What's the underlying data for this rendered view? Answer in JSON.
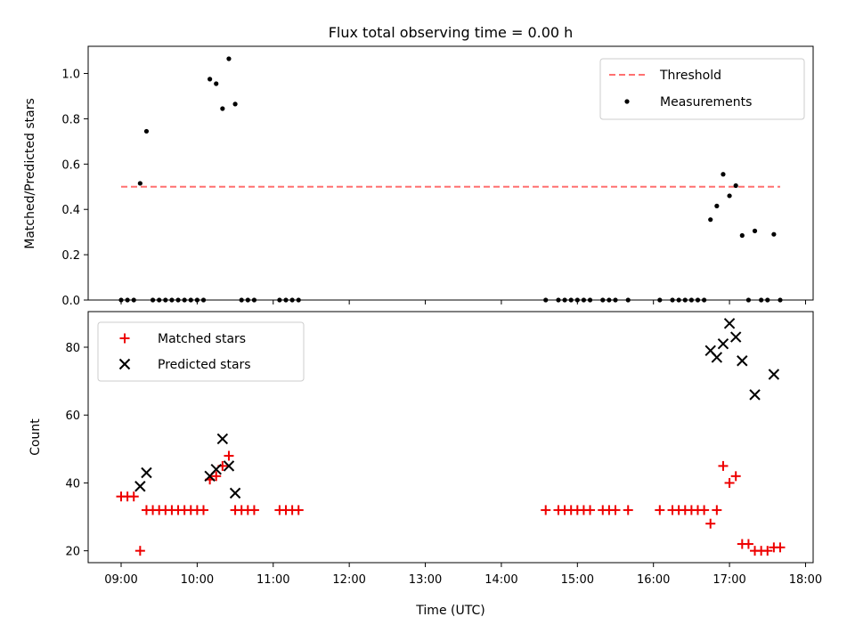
{
  "colors": {
    "threshold": "#ff7070",
    "measurement": "#000000",
    "matched": "#ee0000",
    "predicted": "#000000"
  },
  "chart_data": [
    {
      "type": "scatter",
      "title": "Flux total observing time = 0.00 h",
      "ylabel": "Matched/Predicted stars",
      "xlabel": "",
      "xlim": [
        "08:34",
        "18:06"
      ],
      "ylim": [
        0,
        1.12
      ],
      "yticks": [
        "0.0",
        "0.2",
        "0.4",
        "0.6",
        "0.8",
        "1.0"
      ],
      "legend": "top-right",
      "threshold": {
        "name": "Threshold",
        "y": 0.5,
        "x": [
          "09:00",
          "17:40"
        ]
      },
      "series": [
        {
          "name": "Measurements",
          "points": [
            [
              "09:00",
              0
            ],
            [
              "09:05",
              0
            ],
            [
              "09:10",
              0
            ],
            [
              "09:15",
              0.515
            ],
            [
              "09:20",
              0.745
            ],
            [
              "09:25",
              0
            ],
            [
              "09:30",
              0
            ],
            [
              "09:35",
              0
            ],
            [
              "09:40",
              0
            ],
            [
              "09:45",
              0
            ],
            [
              "09:50",
              0
            ],
            [
              "09:55",
              0
            ],
            [
              "10:00",
              0
            ],
            [
              "10:05",
              0
            ],
            [
              "10:10",
              0.975
            ],
            [
              "10:15",
              0.955
            ],
            [
              "10:20",
              0.845
            ],
            [
              "10:25",
              1.065
            ],
            [
              "10:30",
              0.865
            ],
            [
              "10:35",
              0
            ],
            [
              "10:40",
              0
            ],
            [
              "10:45",
              0
            ],
            [
              "11:05",
              0
            ],
            [
              "11:10",
              0
            ],
            [
              "11:15",
              0
            ],
            [
              "11:20",
              0
            ],
            [
              "14:35",
              0
            ],
            [
              "14:45",
              0
            ],
            [
              "14:50",
              0
            ],
            [
              "14:55",
              0
            ],
            [
              "15:00",
              0
            ],
            [
              "15:05",
              0
            ],
            [
              "15:10",
              0
            ],
            [
              "15:20",
              0
            ],
            [
              "15:25",
              0
            ],
            [
              "15:30",
              0
            ],
            [
              "15:40",
              0
            ],
            [
              "16:05",
              0
            ],
            [
              "16:15",
              0
            ],
            [
              "16:20",
              0
            ],
            [
              "16:25",
              0
            ],
            [
              "16:30",
              0
            ],
            [
              "16:35",
              0
            ],
            [
              "16:40",
              0
            ],
            [
              "16:45",
              0.355
            ],
            [
              "16:50",
              0.415
            ],
            [
              "16:55",
              0.555
            ],
            [
              "17:00",
              0.46
            ],
            [
              "17:05",
              0.505
            ],
            [
              "17:10",
              0.285
            ],
            [
              "17:15",
              0
            ],
            [
              "17:20",
              0.305
            ],
            [
              "17:25",
              0
            ],
            [
              "17:30",
              0
            ],
            [
              "17:35",
              0.29
            ],
            [
              "17:40",
              0
            ]
          ]
        }
      ]
    },
    {
      "type": "scatter",
      "title": "",
      "ylabel": "Count",
      "xlabel": "Time (UTC)",
      "xlim": [
        "08:34",
        "18:06"
      ],
      "ylim": [
        16.5,
        90.5
      ],
      "yticks": [
        "20",
        "40",
        "60",
        "80"
      ],
      "xticks": [
        "09:00",
        "10:00",
        "11:00",
        "12:00",
        "13:00",
        "14:00",
        "15:00",
        "16:00",
        "17:00",
        "18:00"
      ],
      "legend": "top-left",
      "series": [
        {
          "name": "Matched stars",
          "marker": "+",
          "points": [
            [
              "09:00",
              36
            ],
            [
              "09:05",
              36
            ],
            [
              "09:10",
              36
            ],
            [
              "09:15",
              20
            ],
            [
              "09:20",
              32
            ],
            [
              "09:25",
              32
            ],
            [
              "09:30",
              32
            ],
            [
              "09:35",
              32
            ],
            [
              "09:40",
              32
            ],
            [
              "09:45",
              32
            ],
            [
              "09:50",
              32
            ],
            [
              "09:55",
              32
            ],
            [
              "10:00",
              32
            ],
            [
              "10:05",
              32
            ],
            [
              "10:10",
              41
            ],
            [
              "10:15",
              42
            ],
            [
              "10:20",
              45
            ],
            [
              "10:25",
              48
            ],
            [
              "10:30",
              32
            ],
            [
              "10:35",
              32
            ],
            [
              "10:40",
              32
            ],
            [
              "10:45",
              32
            ],
            [
              "11:05",
              32
            ],
            [
              "11:10",
              32
            ],
            [
              "11:15",
              32
            ],
            [
              "11:20",
              32
            ],
            [
              "14:35",
              32
            ],
            [
              "14:45",
              32
            ],
            [
              "14:50",
              32
            ],
            [
              "14:55",
              32
            ],
            [
              "15:00",
              32
            ],
            [
              "15:05",
              32
            ],
            [
              "15:10",
              32
            ],
            [
              "15:20",
              32
            ],
            [
              "15:25",
              32
            ],
            [
              "15:30",
              32
            ],
            [
              "15:40",
              32
            ],
            [
              "16:05",
              32
            ],
            [
              "16:15",
              32
            ],
            [
              "16:20",
              32
            ],
            [
              "16:25",
              32
            ],
            [
              "16:30",
              32
            ],
            [
              "16:35",
              32
            ],
            [
              "16:40",
              32
            ],
            [
              "16:45",
              28
            ],
            [
              "16:50",
              32
            ],
            [
              "16:55",
              45
            ],
            [
              "17:00",
              40
            ],
            [
              "17:05",
              42
            ],
            [
              "17:10",
              22
            ],
            [
              "17:15",
              22
            ],
            [
              "17:20",
              20
            ],
            [
              "17:25",
              20
            ],
            [
              "17:30",
              20
            ],
            [
              "17:35",
              21
            ],
            [
              "17:40",
              21
            ]
          ]
        },
        {
          "name": "Predicted stars",
          "marker": "x",
          "points": [
            [
              "09:15",
              39
            ],
            [
              "09:20",
              43
            ],
            [
              "10:10",
              42
            ],
            [
              "10:15",
              44
            ],
            [
              "10:20",
              53
            ],
            [
              "10:25",
              45
            ],
            [
              "10:30",
              37
            ],
            [
              "16:45",
              79
            ],
            [
              "16:50",
              77
            ],
            [
              "16:55",
              81
            ],
            [
              "17:00",
              87
            ],
            [
              "17:05",
              83
            ],
            [
              "17:10",
              76
            ],
            [
              "17:20",
              66
            ],
            [
              "17:35",
              72
            ]
          ]
        }
      ]
    }
  ]
}
